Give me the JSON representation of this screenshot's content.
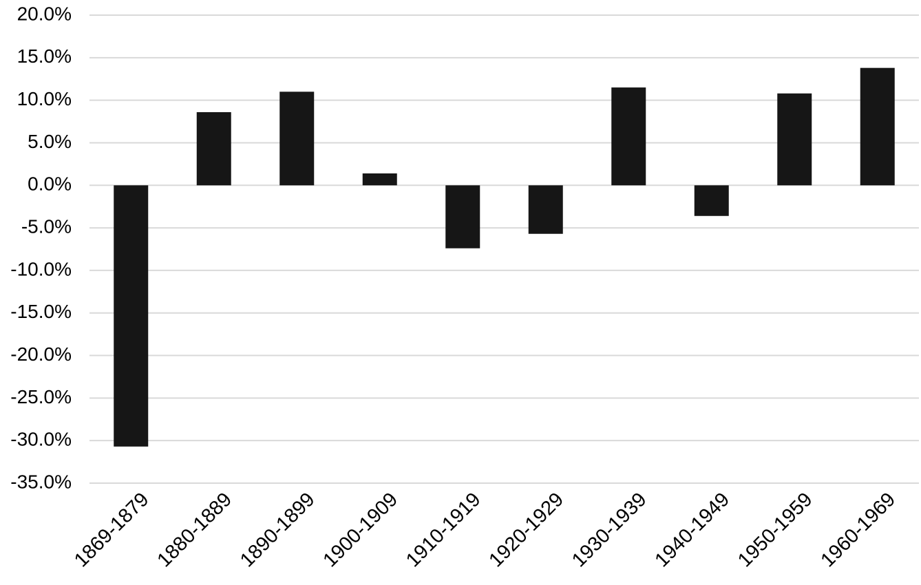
{
  "chart_data": {
    "type": "bar",
    "categories": [
      "1869-1879",
      "1880-1889",
      "1890-1899",
      "1900-1909",
      "1910-1919",
      "1920-1929",
      "1930-1939",
      "1940-1949",
      "1950-1959",
      "1960-1969"
    ],
    "values": [
      -30.7,
      8.6,
      11.0,
      1.4,
      -7.4,
      -5.7,
      11.5,
      -3.6,
      10.8,
      13.8
    ],
    "color": "#161616",
    "ylim": [
      -35,
      20
    ],
    "yticks": [
      {
        "value": -35,
        "label": "-35.0%"
      },
      {
        "value": -30,
        "label": "-30.0%"
      },
      {
        "value": -25,
        "label": "-25.0%"
      },
      {
        "value": -20,
        "label": "-20.0%"
      },
      {
        "value": -15,
        "label": "-15.0%"
      },
      {
        "value": -10,
        "label": "-10.0%"
      },
      {
        "value": -5,
        "label": "-5.0%"
      },
      {
        "value": 0,
        "label": "0.0%"
      },
      {
        "value": 5,
        "label": "5.0%"
      },
      {
        "value": 10,
        "label": "10.0%"
      },
      {
        "value": 15,
        "label": "15.0%"
      },
      {
        "value": 20,
        "label": "20.0%"
      }
    ],
    "grid": true
  }
}
